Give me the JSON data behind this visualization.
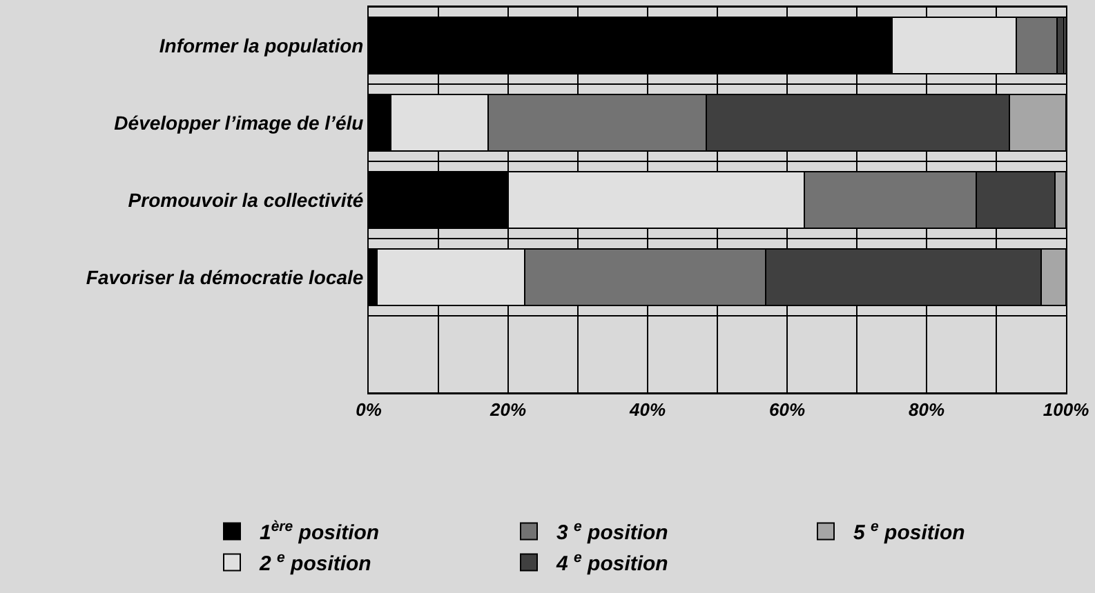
{
  "chart_data": {
    "type": "bar",
    "orientation": "horizontal",
    "stacked": true,
    "categories": [
      "Informer la population",
      "Développer l’image de l’élu",
      "Promouvoir la collectivité",
      "Favoriser la démocratie locale",
      null
    ],
    "series": [
      {
        "name": "1$^{ère}$ position",
        "color": "#000000",
        "values": [
          75,
          3.2,
          20,
          1.2,
          null
        ]
      },
      {
        "name": "2 $^{e}$ position",
        "color": "#e0e0e0",
        "values": [
          17.9,
          13.9,
          42.5,
          21.2,
          null
        ]
      },
      {
        "name": "3 $^{e}$ position",
        "color": "#737373",
        "values": [
          5.8,
          31.3,
          24.6,
          34.5,
          null
        ]
      },
      {
        "name": "4 $^{e}$ position",
        "color": "#404040",
        "values": [
          1,
          43.5,
          11.3,
          39.5,
          null
        ]
      },
      {
        "name": "5 $^{e}$ position",
        "color": "#a6a6a6",
        "values": [
          0.3,
          8.1,
          1.6,
          3.6,
          null
        ]
      }
    ],
    "xlim": [
      0,
      100
    ],
    "xticks": [
      {
        "value": 0,
        "label": "0%"
      },
      {
        "value": 10,
        "label": null
      },
      {
        "value": 20,
        "label": "20%"
      },
      {
        "value": 30,
        "label": null
      },
      {
        "value": 40,
        "label": "40%"
      },
      {
        "value": 50,
        "label": null
      },
      {
        "value": 60,
        "label": "60%"
      },
      {
        "value": 70,
        "label": null
      },
      {
        "value": 80,
        "label": "80%"
      },
      {
        "value": 90,
        "label": null
      },
      {
        "value": 100,
        "label": "100%"
      }
    ],
    "grid": true,
    "legend": "bottom"
  }
}
